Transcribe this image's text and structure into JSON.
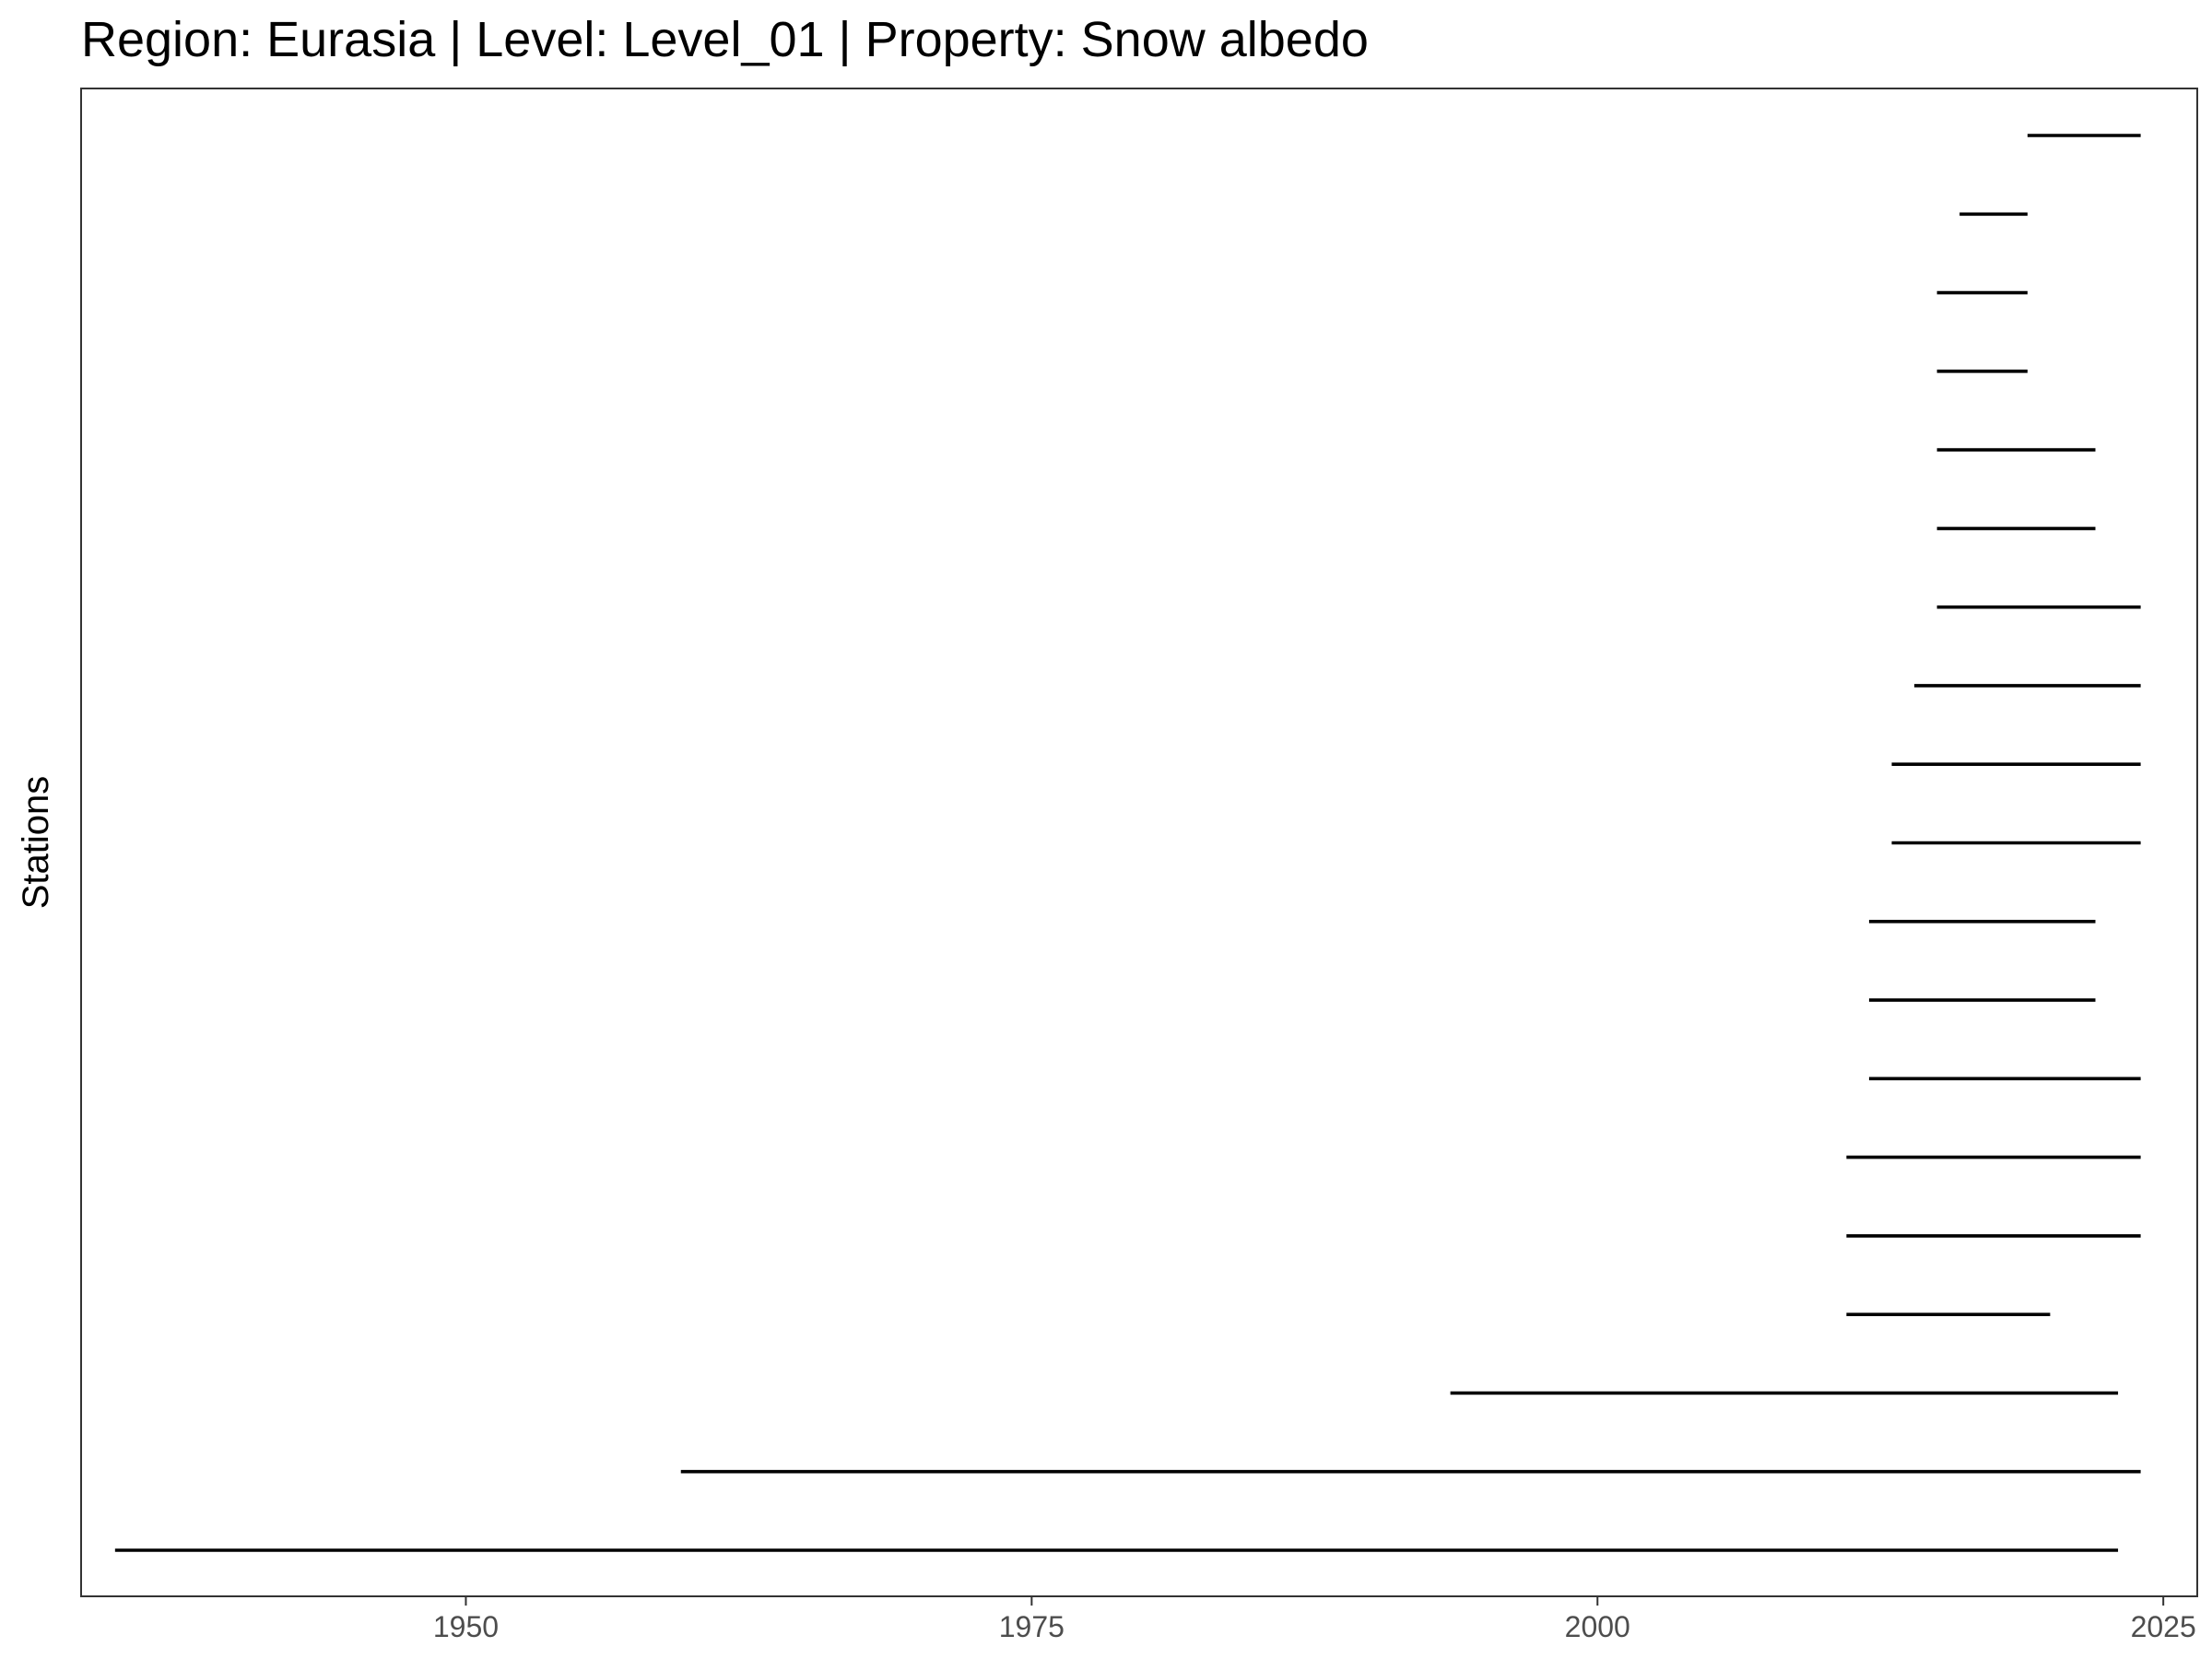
{
  "chart_data": {
    "type": "line",
    "title": "Region: Eurasia | Level: Level_01 | Property: Snow albedo",
    "xlabel": "",
    "ylabel": "Stations",
    "xlim": [
      1933,
      2026.5
    ],
    "x_ticks": [
      1950,
      1975,
      2000,
      2025
    ],
    "grid": false,
    "series": [
      {
        "x": [
          1934.5,
          2023
        ]
      },
      {
        "x": [
          1959.5,
          2024
        ]
      },
      {
        "x": [
          1993.5,
          2023
        ]
      },
      {
        "x": [
          2011,
          2020
        ]
      },
      {
        "x": [
          2011,
          2024
        ]
      },
      {
        "x": [
          2011,
          2024
        ]
      },
      {
        "x": [
          2012,
          2024
        ]
      },
      {
        "x": [
          2012,
          2022
        ]
      },
      {
        "x": [
          2012,
          2022
        ]
      },
      {
        "x": [
          2013,
          2024
        ]
      },
      {
        "x": [
          2013,
          2024
        ]
      },
      {
        "x": [
          2014,
          2024
        ]
      },
      {
        "x": [
          2015,
          2024
        ]
      },
      {
        "x": [
          2015,
          2022
        ]
      },
      {
        "x": [
          2015,
          2022
        ]
      },
      {
        "x": [
          2015,
          2019
        ]
      },
      {
        "x": [
          2015,
          2019
        ]
      },
      {
        "x": [
          2016,
          2019
        ]
      },
      {
        "x": [
          2019,
          2024
        ]
      }
    ]
  }
}
